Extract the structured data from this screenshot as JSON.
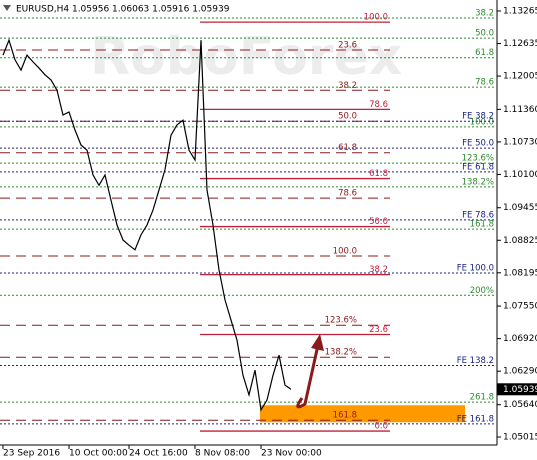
{
  "chart_data": {
    "type": "line",
    "title": "EURUSD,H4  1.05956 1.06063 1.05916 1.05939",
    "watermark": "RoboForex",
    "categories": [
      "23 Sep 2016",
      null,
      null,
      null,
      null,
      null,
      null,
      null,
      null,
      null,
      null,
      "10 Oct 00:00",
      null,
      null,
      null,
      null,
      null,
      null,
      null,
      null,
      null,
      "24 Oct 16:00",
      null,
      null,
      null,
      null,
      null,
      null,
      null,
      null,
      null,
      null,
      "8 Nov 08:00",
      null,
      null,
      null,
      null,
      null,
      null,
      null,
      null,
      null,
      null,
      "23 Nov 00:00",
      null,
      null,
      null,
      null,
      null
    ],
    "series": [
      {
        "color": "#000000",
        "values": [
          1.1241,
          1.127,
          1.1232,
          1.1212,
          1.1241,
          1.1228,
          1.1216,
          1.1203,
          1.1193,
          1.1173,
          1.1125,
          1.1131,
          1.1096,
          1.1067,
          1.1057,
          1.1009,
          1.0989,
          1.1009,
          1.096,
          1.0912,
          1.0883,
          1.0873,
          1.0864,
          1.0893,
          1.0912,
          1.0941,
          1.098,
          1.1019,
          1.1086,
          1.1106,
          1.1115,
          1.1057,
          1.1038,
          1.127,
          1.098,
          1.0912,
          1.0825,
          1.0767,
          1.0728,
          1.0689,
          1.0621,
          1.0583,
          1.0631,
          1.0554,
          1.0573,
          1.0621,
          1.066,
          1.0602,
          1.0594
        ]
      }
    ],
    "ylim": [
      1.0486,
      1.13478
    ],
    "yticks": [
      1.13265,
      {
        "value": 1.12635,
        "label": "1.12635"
      },
      1.12005,
      {
        "value": 1.1136,
        "label": "1.11360"
      },
      {
        "value": 1.1073,
        "label": "1.10730"
      },
      {
        "value": 1.101,
        "label": "1.10100"
      },
      1.09455,
      1.08825,
      1.08195,
      {
        "value": 1.0755,
        "label": "1.07550"
      },
      {
        "value": 1.0692,
        "label": "1.06920"
      },
      {
        "value": 1.0629,
        "label": "1.06290"
      },
      {
        "value": 1.0564,
        "label": "1.05640"
      },
      1.05015
    ],
    "last_price": 1.05939,
    "zone": {
      "color": "#ff9900",
      "values": [
        1.0563,
        1.053
      ]
    },
    "level_groups": [
      {
        "color": "#8b1a1a",
        "line_style": "dashed",
        "levels": [
          {
            "label": "23.6",
            "value": 1.1251
          },
          {
            "label": "38.2",
            "value": 1.1173
          },
          {
            "label": "50.0",
            "value": 1.1113
          },
          {
            "label": "61.8",
            "value": 1.1052
          },
          {
            "label": "78.6",
            "value": 1.0964
          },
          {
            "label": "100.0",
            "value": 1.0852
          },
          {
            "label": "123.6%",
            "value": 1.0718
          },
          {
            "label": "138.2%",
            "value": 1.0656
          },
          {
            "label": "161.8",
            "value": 1.0534
          }
        ]
      },
      {
        "color": "#c0203a",
        "line_style": "solid",
        "levels": [
          {
            "label": "100.0",
            "value": 1.1305
          },
          {
            "label": "78.6",
            "value": 1.1136
          },
          {
            "label": "61.8",
            "value": 1.1002
          },
          {
            "label": "50.0",
            "value": 1.0909
          },
          {
            "label": "38.2",
            "value": 1.0816
          },
          {
            "label": "23.6",
            "value": 1.07
          },
          {
            "label": "0.0",
            "value": 1.0513
          }
        ]
      },
      {
        "color": "#2e8b2e",
        "line_style": "dotted",
        "levels": [
          {
            "label": "38.2",
            "value": 1.1313
          },
          {
            "label": "50.0",
            "value": 1.1274
          },
          {
            "label": "61.8",
            "value": 1.1236
          },
          {
            "label": "78.6",
            "value": 1.1179
          },
          {
            "label": "100.0",
            "value": 1.1102
          },
          {
            "label": "123.6%",
            "value": 1.1032
          },
          {
            "label": "138.2%",
            "value": 1.0986
          },
          {
            "label": "161.8",
            "value": 1.0904
          },
          {
            "label": "200%",
            "value": 1.0776
          },
          {
            "label": "261.8",
            "value": 1.0569
          }
        ]
      },
      {
        "color": "#1a237e",
        "line_style": "dotted",
        "levels": [
          {
            "label": "FE 38.2",
            "value": 1.1113
          },
          {
            "label": "FE 50.0",
            "value": 1.1061
          },
          {
            "label": "FE 61.8",
            "value": 1.1015
          },
          {
            "label": "FE 78.6",
            "value": 1.0922
          },
          {
            "label": "FE 100.0",
            "value": 1.0819
          },
          {
            "label": "FE 138.2",
            "value": 1.064
          },
          {
            "label": "FE 161.8",
            "value": 1.0527
          }
        ]
      }
    ]
  }
}
